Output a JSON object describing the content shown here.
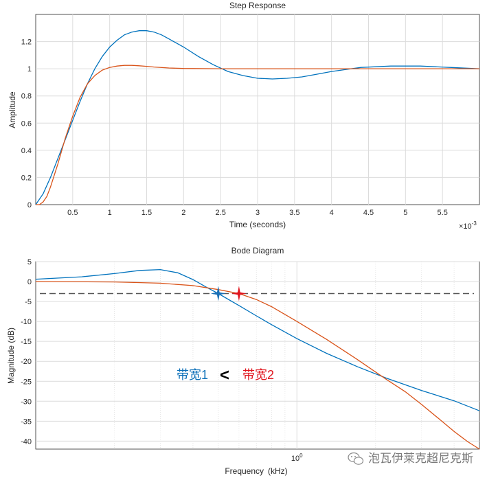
{
  "chart_data": [
    {
      "type": "line",
      "title": "Step Response",
      "xlabel": "Time (seconds)",
      "ylabel": "Amplitude",
      "x_exponent": "×10",
      "x_exponent_power": "-3",
      "xlim": [
        0,
        6
      ],
      "ylim": [
        0,
        1.4
      ],
      "xticks": [
        0.5,
        1,
        1.5,
        2,
        2.5,
        3,
        3.5,
        4,
        4.5,
        5,
        5.5
      ],
      "xtick_labels": [
        "0.5",
        "1",
        "1.5",
        "2",
        "2.5",
        "3",
        "3.5",
        "4",
        "4.5",
        "5",
        "5.5"
      ],
      "yticks": [
        0,
        0.2,
        0.4,
        0.6,
        0.8,
        1,
        1.2
      ],
      "ytick_labels": [
        "0",
        "0.2",
        "0.4",
        "0.6",
        "0.8",
        "1",
        "1.2"
      ],
      "grid": true,
      "series": [
        {
          "color": "#0072BD",
          "x": [
            0,
            0.1,
            0.2,
            0.3,
            0.4,
            0.5,
            0.6,
            0.7,
            0.8,
            0.9,
            1.0,
            1.1,
            1.2,
            1.3,
            1.4,
            1.5,
            1.6,
            1.7,
            1.8,
            1.9,
            2.0,
            2.2,
            2.4,
            2.6,
            2.8,
            3.0,
            3.2,
            3.4,
            3.6,
            3.8,
            4.0,
            4.2,
            4.4,
            4.6,
            4.8,
            5.0,
            5.2,
            5.4,
            5.6,
            5.8,
            6.0
          ],
          "y": [
            0,
            0.08,
            0.2,
            0.34,
            0.48,
            0.62,
            0.76,
            0.89,
            1.0,
            1.09,
            1.16,
            1.21,
            1.25,
            1.27,
            1.28,
            1.28,
            1.27,
            1.25,
            1.22,
            1.19,
            1.16,
            1.09,
            1.03,
            0.98,
            0.95,
            0.93,
            0.925,
            0.93,
            0.94,
            0.96,
            0.98,
            0.995,
            1.01,
            1.015,
            1.02,
            1.02,
            1.02,
            1.015,
            1.01,
            1.005,
            1.0
          ]
        },
        {
          "color": "#D95319",
          "x": [
            0,
            0.05,
            0.1,
            0.15,
            0.2,
            0.3,
            0.4,
            0.5,
            0.6,
            0.7,
            0.8,
            0.9,
            1.0,
            1.1,
            1.2,
            1.3,
            1.4,
            1.5,
            1.6,
            1.8,
            2.0,
            2.5,
            3.0,
            4.0,
            5.0,
            6.0
          ],
          "y": [
            0,
            0.0,
            0.02,
            0.06,
            0.13,
            0.3,
            0.49,
            0.65,
            0.79,
            0.89,
            0.95,
            0.99,
            1.01,
            1.02,
            1.025,
            1.025,
            1.022,
            1.018,
            1.013,
            1.006,
            1.002,
            1.0,
            1.0,
            1.0,
            1.0,
            1.0
          ]
        }
      ]
    },
    {
      "type": "line",
      "title": "Bode Diagram",
      "xlabel": "Frequency",
      "xunit": "(kHz)",
      "ylabel": "Magnitude (dB)",
      "xscale": "log",
      "xlim": [
        0.1,
        5
      ],
      "ylim": [
        -42,
        5
      ],
      "xtick_label_base": "10",
      "xtick_label_power": "0",
      "xtick_label_value": 1,
      "yticks": [
        5,
        0,
        -5,
        -10,
        -15,
        -20,
        -25,
        -30,
        -35,
        -40
      ],
      "ytick_labels": [
        "5",
        "0",
        "-5",
        "-10",
        "-15",
        "-20",
        "-25",
        "-30",
        "-35",
        "-40"
      ],
      "grid": true,
      "reference_line_db": -3,
      "series": [
        {
          "color": "#0072BD",
          "x": [
            0.1,
            0.15,
            0.2,
            0.25,
            0.3,
            0.35,
            0.4,
            0.45,
            0.5,
            0.6,
            0.7,
            0.8,
            1.0,
            1.3,
            1.7,
            2.2,
            3.0,
            4.0,
            5.0
          ],
          "y": [
            0.6,
            1.2,
            2.0,
            2.8,
            3.0,
            2.2,
            0.5,
            -1.4,
            -3.0,
            -6.0,
            -8.6,
            -10.8,
            -14.3,
            -18.0,
            -21.3,
            -24.2,
            -27.3,
            -29.9,
            -32.4
          ]
        },
        {
          "color": "#D95319",
          "x": [
            0.1,
            0.2,
            0.3,
            0.4,
            0.5,
            0.6,
            0.7,
            0.8,
            1.0,
            1.3,
            1.7,
            2.2,
            2.6,
            3.0,
            3.5,
            4.0,
            4.5,
            5.0
          ],
          "y": [
            0,
            -0.1,
            -0.4,
            -1.0,
            -2.0,
            -3.0,
            -4.5,
            -6.3,
            -10.0,
            -14.5,
            -19.5,
            -24.5,
            -27.6,
            -30.8,
            -34.4,
            -37.6,
            -40.1,
            -42.3
          ]
        }
      ],
      "markers": [
        {
          "x": 0.5,
          "y": -3,
          "color": "#1a6fb5"
        },
        {
          "x": 0.6,
          "y": -3,
          "color": "#e0161e"
        }
      ],
      "annotations": {
        "bw1": "带宽1",
        "bw1_color": "#0b6fb8",
        "compare": "<",
        "bw2": "带宽2",
        "bw2_color": "#e0161e"
      }
    }
  ],
  "watermark": {
    "text": "泡瓦伊莱克超尼克斯",
    "icon": "wechat-icon"
  }
}
